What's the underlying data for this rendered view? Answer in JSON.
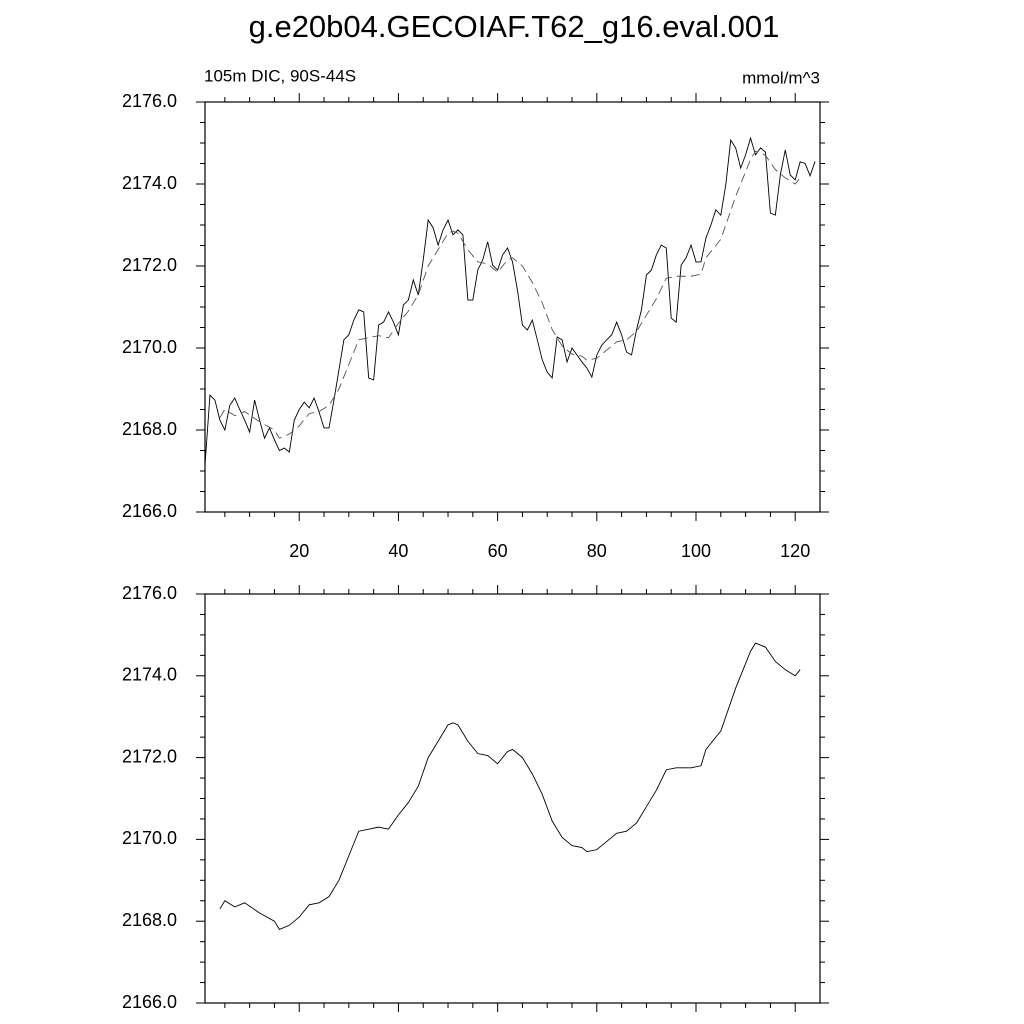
{
  "chart_data": [
    {
      "type": "line",
      "title": "g.e20b04.GECOIAF.T62_g16.eval.001",
      "subtitle": "105m DIC, 90S-44S",
      "units": "mmol/m^3",
      "xlim": [
        1,
        125
      ],
      "xticks": [
        20,
        40,
        60,
        80,
        100,
        120
      ],
      "xticklabels": true,
      "ylim": [
        2166,
        2176
      ],
      "yticks": [
        {
          "value": 2166,
          "label": "2166.0"
        },
        {
          "value": 2168,
          "label": "2168.0"
        },
        {
          "value": 2170,
          "label": "2170.0"
        },
        {
          "value": 2172,
          "label": "2172.0"
        },
        {
          "value": 2174,
          "label": "2174.0"
        },
        {
          "value": 2176,
          "label": "2176.0"
        }
      ],
      "series": [
        {
          "color": "#000000",
          "dash": false,
          "x": [
            1,
            2,
            3,
            4,
            5,
            6,
            7,
            8,
            9,
            10,
            11,
            12,
            13,
            14,
            15,
            16,
            17,
            18,
            19,
            20,
            21,
            22,
            23,
            24,
            25,
            26,
            27,
            28,
            29,
            30,
            31,
            32,
            33,
            34,
            35,
            36,
            37,
            38,
            39,
            40,
            41,
            42,
            43,
            44,
            45,
            46,
            47,
            48,
            49,
            50,
            51,
            52,
            53,
            54,
            55,
            56,
            57,
            58,
            59,
            60,
            61,
            62,
            63,
            64,
            65,
            66,
            67,
            68,
            69,
            70,
            71,
            72,
            73,
            74,
            75,
            76,
            77,
            78,
            79,
            80,
            81,
            82,
            83,
            84,
            85,
            86,
            87,
            88,
            89,
            90,
            91,
            92,
            93,
            94,
            95,
            96,
            97,
            98,
            99,
            100,
            101,
            102,
            103,
            104,
            105,
            106,
            107,
            108,
            109,
            110,
            111,
            112,
            113,
            114,
            115,
            116,
            117,
            118,
            119,
            120,
            121,
            122,
            123,
            124
          ],
          "values": [
            2167.15,
            2168.85,
            2168.73,
            2168.24,
            2168.0,
            2168.6,
            2168.78,
            2168.5,
            2168.24,
            2167.95,
            2168.73,
            2168.24,
            2167.8,
            2168.05,
            2167.76,
            2167.5,
            2167.56,
            2167.46,
            2168.24,
            2168.5,
            2168.68,
            2168.54,
            2168.78,
            2168.44,
            2168.05,
            2168.05,
            2168.73,
            2169.46,
            2170.2,
            2170.32,
            2170.68,
            2170.93,
            2170.88,
            2169.27,
            2169.22,
            2170.56,
            2170.63,
            2170.88,
            2170.63,
            2170.32,
            2171.05,
            2171.17,
            2171.66,
            2171.29,
            2172.15,
            2173.12,
            2172.93,
            2172.51,
            2172.88,
            2173.12,
            2172.76,
            2172.88,
            2172.76,
            2171.17,
            2171.17,
            2171.9,
            2172.15,
            2172.59,
            2172.02,
            2171.9,
            2172.27,
            2172.44,
            2172.1,
            2171.41,
            2170.56,
            2170.44,
            2170.68,
            2170.2,
            2169.71,
            2169.41,
            2169.27,
            2170.27,
            2170.2,
            2169.66,
            2170.0,
            2169.83,
            2169.66,
            2169.51,
            2169.29,
            2169.83,
            2170.07,
            2170.2,
            2170.32,
            2170.63,
            2170.32,
            2169.9,
            2169.83,
            2170.44,
            2170.93,
            2171.78,
            2171.9,
            2172.27,
            2172.51,
            2172.44,
            2170.73,
            2170.63,
            2172.02,
            2172.2,
            2172.51,
            2172.1,
            2172.1,
            2172.68,
            2173.0,
            2173.37,
            2173.24,
            2173.98,
            2175.07,
            2174.88,
            2174.39,
            2174.71,
            2175.12,
            2174.71,
            2174.88,
            2174.78,
            2173.29,
            2173.24,
            2174.22,
            2174.83,
            2174.22,
            2174.1,
            2174.54,
            2174.5,
            2174.2,
            2174.55
          ]
        },
        {
          "color": "#555555",
          "dash": true,
          "x": [
            4,
            5,
            7,
            9,
            12,
            15,
            16,
            18,
            20,
            22,
            24,
            26,
            28,
            30,
            32,
            34,
            36,
            38,
            40,
            42,
            44,
            46,
            48,
            50,
            51,
            52,
            54,
            56,
            58,
            60,
            62,
            63,
            65,
            67,
            69,
            71,
            73,
            75,
            77,
            78,
            80,
            82,
            84,
            86,
            88,
            90,
            92,
            94,
            96,
            99,
            101,
            102,
            104,
            105,
            108,
            111,
            112,
            114,
            116,
            118,
            120,
            121
          ],
          "values": [
            2168.3,
            2168.5,
            2168.35,
            2168.45,
            2168.2,
            2168.0,
            2167.8,
            2167.9,
            2168.1,
            2168.4,
            2168.45,
            2168.6,
            2169.0,
            2169.6,
            2170.2,
            2170.25,
            2170.3,
            2170.25,
            2170.6,
            2170.9,
            2171.3,
            2172.0,
            2172.4,
            2172.8,
            2172.85,
            2172.8,
            2172.4,
            2172.1,
            2172.05,
            2171.85,
            2172.15,
            2172.2,
            2172.0,
            2171.6,
            2171.1,
            2170.45,
            2170.05,
            2169.85,
            2169.8,
            2169.7,
            2169.75,
            2169.95,
            2170.15,
            2170.2,
            2170.4,
            2170.8,
            2171.2,
            2171.7,
            2171.75,
            2171.75,
            2171.8,
            2172.2,
            2172.5,
            2172.65,
            2173.7,
            2174.6,
            2174.8,
            2174.7,
            2174.35,
            2174.15,
            2174.0,
            2174.15
          ]
        }
      ]
    },
    {
      "type": "line",
      "xlim": [
        1,
        125
      ],
      "xticks": [
        20,
        40,
        60,
        80,
        100,
        120
      ],
      "xticklabels": false,
      "ylim": [
        2166,
        2176
      ],
      "yticks": [
        {
          "value": 2166,
          "label": "2166.0"
        },
        {
          "value": 2168,
          "label": "2168.0"
        },
        {
          "value": 2170,
          "label": "2170.0"
        },
        {
          "value": 2172,
          "label": "2172.0"
        },
        {
          "value": 2174,
          "label": "2174.0"
        },
        {
          "value": 2176,
          "label": "2176.0"
        }
      ],
      "series": [
        {
          "color": "#000000",
          "dash": false,
          "x": [
            4,
            5,
            7,
            9,
            12,
            15,
            16,
            18,
            20,
            22,
            24,
            26,
            28,
            30,
            32,
            34,
            36,
            38,
            40,
            42,
            44,
            46,
            48,
            50,
            51,
            52,
            54,
            56,
            58,
            60,
            62,
            63,
            65,
            67,
            69,
            71,
            73,
            75,
            77,
            78,
            80,
            82,
            84,
            86,
            88,
            90,
            92,
            94,
            96,
            99,
            101,
            102,
            104,
            105,
            108,
            111,
            112,
            114,
            116,
            118,
            120,
            121
          ],
          "values": [
            2168.3,
            2168.5,
            2168.35,
            2168.45,
            2168.2,
            2168.0,
            2167.8,
            2167.9,
            2168.1,
            2168.4,
            2168.45,
            2168.6,
            2169.0,
            2169.6,
            2170.2,
            2170.25,
            2170.3,
            2170.25,
            2170.6,
            2170.9,
            2171.3,
            2172.0,
            2172.4,
            2172.8,
            2172.85,
            2172.8,
            2172.4,
            2172.1,
            2172.05,
            2171.85,
            2172.15,
            2172.2,
            2172.0,
            2171.6,
            2171.1,
            2170.45,
            2170.05,
            2169.85,
            2169.8,
            2169.7,
            2169.75,
            2169.95,
            2170.15,
            2170.2,
            2170.4,
            2170.8,
            2171.2,
            2171.7,
            2171.75,
            2171.75,
            2171.8,
            2172.2,
            2172.5,
            2172.65,
            2173.7,
            2174.6,
            2174.8,
            2174.7,
            2174.35,
            2174.15,
            2174.0,
            2174.15
          ]
        }
      ]
    }
  ]
}
